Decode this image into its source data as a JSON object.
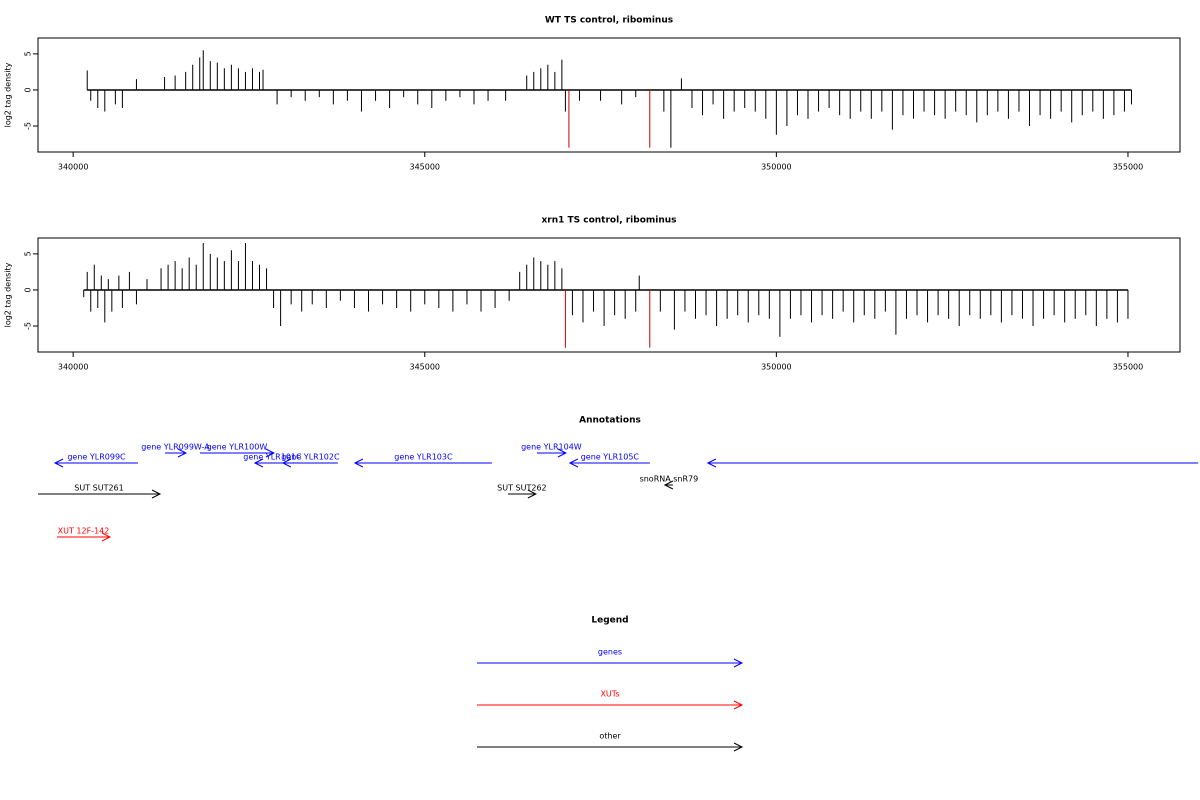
{
  "chart_data": [
    {
      "type": "bar",
      "title": "WT TS control, ribominus",
      "ylabel": "log2 tag density",
      "xlim": [
        339500,
        355740
      ],
      "ylim": [
        -8.6,
        7.2
      ],
      "xticks": [
        340000,
        345000,
        350000,
        355000
      ],
      "yticks": [
        -5,
        0,
        5
      ],
      "series": [
        {
          "color": "#000000",
          "x": [
            340200,
            340250,
            340350,
            340450,
            340600,
            340700,
            340900,
            341300,
            341450,
            341600,
            341700,
            341800,
            341850,
            341950,
            342050,
            342150,
            342250,
            342350,
            342450,
            342550,
            342650,
            342700,
            342900,
            343100,
            343300,
            343500,
            343700,
            343900,
            344100,
            344300,
            344500,
            344700,
            344900,
            345100,
            345300,
            345500,
            345700,
            345900,
            346150,
            346450,
            346550,
            346650,
            346750,
            346850,
            346950,
            347000,
            347200,
            347500,
            347800,
            348000,
            348400,
            348500,
            348650,
            348800,
            348950,
            349100,
            349250,
            349400,
            349550,
            349700,
            349850,
            350000,
            350150,
            350300,
            350450,
            350600,
            350750,
            350900,
            351050,
            351200,
            351350,
            351500,
            351650,
            351800,
            351950,
            352100,
            352250,
            352400,
            352550,
            352700,
            352850,
            353000,
            353150,
            353300,
            353450,
            353600,
            353750,
            353900,
            354050,
            354200,
            354350,
            354500,
            354650,
            354800,
            354950,
            355050
          ],
          "values": [
            2.7,
            -1.5,
            -2.5,
            -3,
            -2,
            -2.5,
            1.5,
            1.8,
            2,
            2.5,
            3.5,
            4.5,
            5.5,
            4,
            3.8,
            3,
            3.5,
            3,
            2.5,
            3,
            2.5,
            2.8,
            -2,
            -1,
            -1.5,
            -1,
            -2,
            -1.5,
            -3,
            -1.5,
            -2.5,
            -1,
            -2,
            -2.5,
            -1.5,
            -1,
            -2,
            -1.5,
            -1.5,
            2,
            2.5,
            3,
            3.5,
            2.5,
            4.2,
            -3,
            -1.5,
            -1.5,
            -2,
            -1,
            -3,
            -8,
            1.6,
            -2.5,
            -3.5,
            -2,
            -4,
            -3,
            -2.5,
            -3,
            -4,
            -6.2,
            -5,
            -3.5,
            -4,
            -3,
            -2.5,
            -3.5,
            -4,
            -3,
            -4,
            -3,
            -5.5,
            -3.5,
            -4,
            -3,
            -3.5,
            -4,
            -3,
            -3.5,
            -4.5,
            -3.5,
            -3,
            -4,
            -3,
            -5,
            -3.5,
            -4,
            -3,
            -4.5,
            -3.5,
            -3,
            -4,
            -3.5,
            -3,
            -2
          ]
        },
        {
          "color": "#cc0000",
          "x": [
            347050,
            348200
          ],
          "values": [
            -8,
            -8
          ]
        }
      ]
    },
    {
      "type": "bar",
      "title": "xrn1 TS control, ribominus",
      "ylabel": "log2 tag density",
      "xlim": [
        339500,
        355740
      ],
      "ylim": [
        -8.6,
        7.2
      ],
      "xticks": [
        340000,
        345000,
        350000,
        355000
      ],
      "yticks": [
        -5,
        0,
        5
      ],
      "series": [
        {
          "color": "#000000",
          "x": [
            340150,
            340200,
            340250,
            340300,
            340350,
            340400,
            340450,
            340500,
            340550,
            340650,
            340700,
            340800,
            340900,
            341050,
            341250,
            341350,
            341450,
            341550,
            341650,
            341750,
            341850,
            341950,
            342050,
            342150,
            342250,
            342350,
            342450,
            342550,
            342650,
            342750,
            342850,
            342950,
            343100,
            343250,
            343400,
            343600,
            343800,
            344000,
            344200,
            344400,
            344600,
            344800,
            345000,
            345200,
            345400,
            345600,
            345800,
            346000,
            346200,
            346350,
            346450,
            346550,
            346650,
            346750,
            346850,
            346950,
            347100,
            347250,
            347400,
            347550,
            347700,
            347850,
            348000,
            348050,
            348350,
            348550,
            348700,
            348850,
            349000,
            349150,
            349300,
            349450,
            349600,
            349750,
            349900,
            350050,
            350200,
            350350,
            350500,
            350650,
            350800,
            350950,
            351100,
            351250,
            351400,
            351550,
            351700,
            351850,
            352000,
            352150,
            352300,
            352450,
            352600,
            352750,
            352900,
            353050,
            353200,
            353350,
            353500,
            353650,
            353800,
            353950,
            354100,
            354250,
            354400,
            354550,
            354700,
            354850,
            355000
          ],
          "values": [
            -1,
            2.5,
            -3,
            3.5,
            -2.5,
            2,
            -4.5,
            1.5,
            -3,
            2,
            -2.5,
            2.5,
            -2,
            1.5,
            3,
            3.5,
            4,
            3,
            4.5,
            3.5,
            6.5,
            5,
            4.5,
            4,
            5.5,
            4,
            6.5,
            4,
            3.5,
            3,
            -2.5,
            -5,
            -2,
            -3,
            -2,
            -2.5,
            -1.5,
            -2.5,
            -3,
            -2,
            -2.5,
            -3,
            -2,
            -2.5,
            -3,
            -2,
            -3,
            -2.5,
            -1.5,
            2.5,
            3.5,
            4.5,
            4,
            3.5,
            4,
            3,
            -3.5,
            -4.5,
            -3,
            -5,
            -3.5,
            -4,
            -3,
            2,
            -3,
            -5.5,
            -3,
            -4,
            -3.5,
            -5,
            -4,
            -3.5,
            -4.5,
            -3.5,
            -4,
            -6.5,
            -4,
            -3.5,
            -4.5,
            -3.5,
            -4,
            -3,
            -4.5,
            -3.5,
            -4,
            -3,
            -6.2,
            -4,
            -3.5,
            -4.5,
            -3.5,
            -4,
            -5,
            -3.5,
            -4,
            -3.5,
            -4.5,
            -3.5,
            -4,
            -5,
            -4,
            -3.5,
            -4.5,
            -4,
            -3.5,
            -5,
            -4,
            -4.5,
            -4
          ]
        },
        {
          "color": "#cc0000",
          "x": [
            347000,
            348200
          ],
          "values": [
            -8,
            -8
          ]
        }
      ]
    }
  ],
  "annotations": {
    "title": "Annotations",
    "rows": [
      [
        {
          "label": "gene YLR099W-A",
          "start": 341306,
          "end": 341604,
          "strand": "+",
          "color": "#0000ff"
        },
        {
          "label": "gene YLR100W",
          "start": 341803,
          "end": 342855,
          "strand": "+",
          "color": "#0000ff"
        },
        {
          "label": "gene YLR104W",
          "start": 346595,
          "end": 347007,
          "strand": "+",
          "color": "#0000ff"
        }
      ],
      [
        {
          "label": "gene YLR099C",
          "start": 339742,
          "end": 340922,
          "strand": "-",
          "color": "#0000ff"
        },
        {
          "label": "gene YLR101C",
          "start": 342585,
          "end": 343083,
          "strand": "-",
          "color": "#0000ff"
        },
        {
          "label": "gene YLR102C",
          "start": 342983,
          "end": 343765,
          "strand": "-",
          "color": "#0000ff"
        },
        {
          "label": "gene YLR103C",
          "start": 344007,
          "end": 345955,
          "strand": "-",
          "color": "#0000ff"
        },
        {
          "label": "gene YLR105C",
          "start": 347064,
          "end": 348201,
          "strand": "-",
          "color": "#0000ff"
        },
        {
          "start": 349026,
          "end": 355999,
          "strand": "-",
          "color": "#0000ff"
        }
      ],
      [
        {
          "label": "snoRNA snR79",
          "start": 348415,
          "end": 348529,
          "strand": "-",
          "color": "#000000"
        }
      ],
      [
        {
          "label": "SUT SUT261",
          "start": 339500,
          "end": 341235,
          "strand": "+",
          "color": "#000000"
        },
        {
          "label": "SUT SUT262",
          "start": 346183,
          "end": 346580,
          "strand": "+",
          "color": "#000000"
        }
      ],
      [
        {
          "label": "XUT 12F-142",
          "start": 339770,
          "end": 340524,
          "strand": "+",
          "color": "#ff0000"
        }
      ]
    ]
  },
  "legend": {
    "title": "Legend",
    "items": [
      {
        "label": "genes",
        "color": "#0000ff"
      },
      {
        "label": "XUTs",
        "color": "#ff0000"
      },
      {
        "label": "other",
        "color": "#000000"
      }
    ]
  }
}
